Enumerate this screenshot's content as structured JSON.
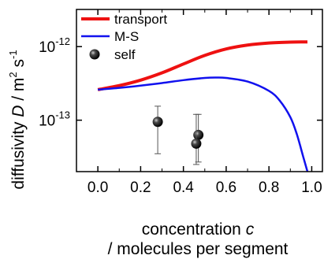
{
  "chart_data": {
    "type": "line",
    "title": "",
    "xlabel_line1_prefix": "concentration ",
    "xlabel_line1_var": "c",
    "xlabel_line2": "/ molecules per segment",
    "ylabel_prefix": "diffusivity ",
    "ylabel_var": "D",
    "ylabel_suffix": " / m",
    "ylabel_sup1": "2",
    "ylabel_mid": " s",
    "ylabel_sup2": "-1",
    "x_scale": "linear",
    "y_scale": "log",
    "xlim": [
      -0.1,
      1.05
    ],
    "ylim": [
      2e-14,
      3.2e-12
    ],
    "x_ticks": [
      0.0,
      0.2,
      0.4,
      0.6,
      0.8,
      1.0
    ],
    "x_tick_labels": [
      "0.0",
      "0.2",
      "0.4",
      "0.6",
      "0.8",
      "1.0"
    ],
    "y_ticks": [
      1e-13,
      1e-12
    ],
    "y_tick_labels": [
      {
        "base": "10",
        "exp": "-13"
      },
      {
        "base": "10",
        "exp": "-12"
      }
    ],
    "legend_position": "top-left",
    "grid": false,
    "series": [
      {
        "name": "transport",
        "kind": "line",
        "color": "#ee1111",
        "x": [
          0.0,
          0.1,
          0.2,
          0.3,
          0.4,
          0.5,
          0.6,
          0.7,
          0.8,
          0.9,
          0.98
        ],
        "y": [
          2.6e-13,
          2.95e-13,
          3.5e-13,
          4.4e-13,
          5.8e-13,
          7.6e-13,
          9.3e-13,
          1.05e-12,
          1.12e-12,
          1.15e-12,
          1.16e-12
        ]
      },
      {
        "name": "M-S",
        "kind": "line",
        "color": "#1111ee",
        "x": [
          0.0,
          0.1,
          0.2,
          0.3,
          0.4,
          0.5,
          0.55,
          0.6,
          0.7,
          0.8,
          0.85,
          0.9,
          0.93,
          0.96,
          0.98
        ],
        "y": [
          2.6e-13,
          2.75e-13,
          2.95e-13,
          3.2e-13,
          3.5e-13,
          3.75e-13,
          3.8e-13,
          3.75e-13,
          3.35e-13,
          2.5e-13,
          1.85e-13,
          1.1e-13,
          6.5e-14,
          3.2e-14,
          2e-14
        ]
      },
      {
        "name": "self",
        "kind": "scatter",
        "color": "#000000",
        "points": [
          {
            "x": 0.28,
            "y": 9.5e-14,
            "err_low": 3.5e-14,
            "err_high": 1.55e-13
          },
          {
            "x": 0.47,
            "y": 6.3e-14,
            "err_low": 2.7e-14,
            "err_high": 1.2e-13
          },
          {
            "x": 0.46,
            "y": 4.8e-14,
            "err_low": 2.5e-14,
            "err_high": 1.2e-13
          }
        ]
      }
    ]
  }
}
